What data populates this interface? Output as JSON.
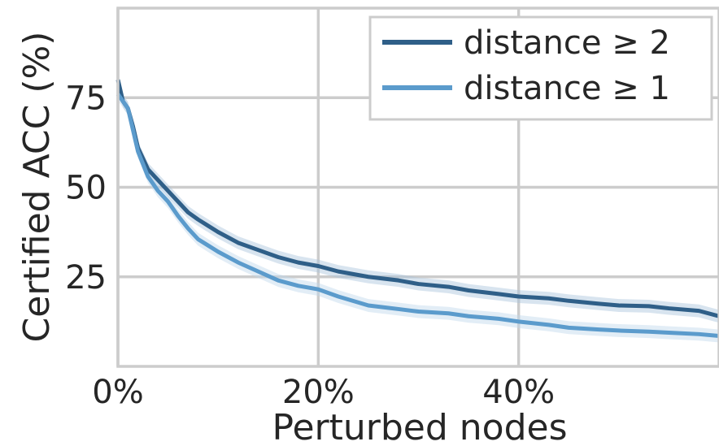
{
  "chart_data": {
    "type": "line",
    "title": "",
    "xlabel": "Perturbed nodes",
    "ylabel": "Certified ACC (%)",
    "xlim": [
      0,
      60
    ],
    "ylim": [
      0,
      100
    ],
    "x_ticks": [
      0,
      20,
      40
    ],
    "x_tick_labels": [
      "0%",
      "20%",
      "40%"
    ],
    "y_ticks": [
      25,
      50,
      75
    ],
    "y_tick_labels": [
      "25",
      "50",
      "75"
    ],
    "grid": true,
    "legend_position": "top-right",
    "series": [
      {
        "name": "distance ≥ 2",
        "color": "#2f5f88",
        "band_color": "#a9c4dc",
        "x": [
          0,
          0.5,
          1,
          1.5,
          2,
          3,
          4,
          5,
          6,
          7,
          8,
          10,
          12,
          14,
          16,
          18,
          20,
          22,
          25,
          28,
          30,
          33,
          35,
          38,
          40,
          43,
          45,
          48,
          50,
          53,
          55,
          58,
          60
        ],
        "y": [
          80,
          74,
          72,
          67,
          61,
          55,
          52,
          49,
          46,
          43,
          41,
          37.5,
          34.5,
          32.5,
          30.5,
          29,
          28,
          26.5,
          25,
          24,
          23,
          22.2,
          21.2,
          20.2,
          19.5,
          19,
          18.3,
          17.5,
          17,
          16.8,
          16.2,
          15.5,
          14
        ]
      },
      {
        "name": "distance ≥ 1",
        "color": "#5b9bcc",
        "band_color": "#bfd8ec",
        "x": [
          0,
          0.5,
          1,
          1.5,
          2,
          3,
          4,
          5,
          6,
          7,
          8,
          10,
          12,
          14,
          16,
          18,
          20,
          22,
          25,
          28,
          30,
          33,
          35,
          38,
          40,
          43,
          45,
          48,
          50,
          53,
          55,
          58,
          60
        ],
        "y": [
          76,
          74,
          72,
          66,
          60,
          53,
          49,
          46,
          42,
          38.5,
          35.5,
          32,
          29,
          26.5,
          24,
          22.5,
          21.5,
          19.5,
          17,
          16,
          15.3,
          14.8,
          14,
          13.3,
          12.5,
          11.6,
          10.8,
          10.3,
          10,
          9.7,
          9.4,
          9,
          8.5
        ]
      }
    ]
  }
}
